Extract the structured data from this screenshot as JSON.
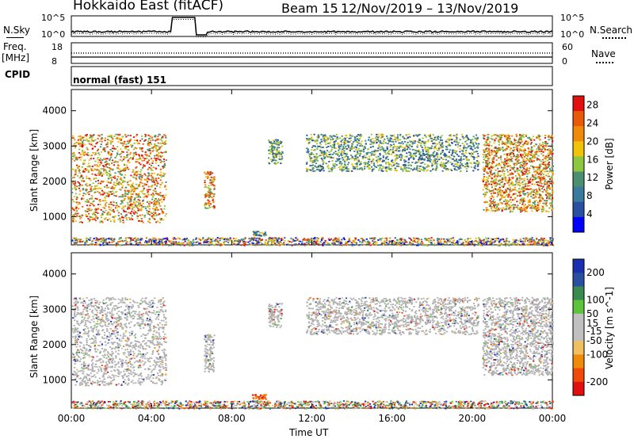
{
  "header": {
    "station_title": "Hokkaido East (fitACF)",
    "beam_label": "Beam 15",
    "date_range": "12/Nov/2019 – 13/Nov/2019"
  },
  "top_strip": {
    "left_label": "N.Sky",
    "right_label": "N.Search",
    "left_ticks": [
      "10^5",
      "10^0"
    ],
    "right_ticks": [
      "10^5",
      "10^0"
    ]
  },
  "freq_strip": {
    "left_label_line1": "Freq.",
    "left_label_line2": "[MHz]",
    "right_label": "Nave",
    "left_ticks": [
      "18",
      "8"
    ],
    "right_ticks": [
      "60",
      "0"
    ]
  },
  "cpid_strip": {
    "label": "CPID",
    "mode_text": "normal (fast) 151"
  },
  "colors": {
    "power_scale": [
      "#0000ff",
      "#2a4fa0",
      "#3a7a9a",
      "#4a8f70",
      "#8dc63f",
      "#f0c20a",
      "#f08a0a",
      "#e85a0a",
      "#e01010"
    ],
    "velocity_scale": [
      "#e01010",
      "#f04a0a",
      "#f08a0a",
      "#f0c060",
      "#c0c0c0",
      "#c0c0c0",
      "#5cc43c",
      "#3a8a50",
      "#2a4fa0",
      "#1a2fb0"
    ],
    "ground_scatter": "#b0b0b0"
  },
  "chart_data": [
    {
      "type": "heatmap",
      "title": "",
      "ylabel": "Slant Range [km]",
      "xlabel": "",
      "ylim": [
        200,
        4600
      ],
      "yticks": [
        "1000",
        "2000",
        "3000",
        "4000"
      ],
      "colorbar": {
        "label": "Power [dB]",
        "ticks": [
          "4",
          "8",
          "12",
          "16",
          "20",
          "24",
          "28"
        ],
        "range": [
          0,
          30
        ]
      },
      "echo_regions": [
        {
          "t0": 0.0,
          "t1": 4.7,
          "r0": 850,
          "r1": 3350,
          "level": "high"
        },
        {
          "t0": 6.6,
          "t1": 7.1,
          "r0": 1250,
          "r1": 2300,
          "level": "high"
        },
        {
          "t0": 9.8,
          "t1": 10.5,
          "r0": 2500,
          "r1": 3200,
          "level": "medium"
        },
        {
          "t0": 11.7,
          "t1": 20.3,
          "r0": 2300,
          "r1": 3350,
          "level": "medium"
        },
        {
          "t0": 20.5,
          "t1": 24.0,
          "r0": 1150,
          "r1": 3350,
          "level": "high"
        },
        {
          "t0": 9.0,
          "t1": 9.7,
          "r0": 470,
          "r1": 600,
          "level": "medium"
        },
        {
          "t0": 0.0,
          "t1": 24.0,
          "r0": 200,
          "r1": 420,
          "level": "low"
        }
      ]
    },
    {
      "type": "heatmap",
      "title": "",
      "ylabel": "Slant Range [km]",
      "xlabel": "Time UT",
      "xticks": [
        "00:00",
        "04:00",
        "08:00",
        "12:00",
        "16:00",
        "20:00",
        "00:00"
      ],
      "xlim": [
        0,
        24
      ],
      "ylim": [
        200,
        4600
      ],
      "yticks": [
        "1000",
        "2000",
        "3000",
        "4000"
      ],
      "colorbar": {
        "label": "Velocity [m s^-1]",
        "ticks": [
          "200",
          "100",
          "50",
          "15",
          "-15",
          "-50",
          "-100",
          "-200"
        ],
        "range": [
          -250,
          250
        ]
      },
      "echo_regions": [
        {
          "t0": 0.0,
          "t1": 4.7,
          "r0": 850,
          "r1": 3350,
          "level": "ground"
        },
        {
          "t0": 6.6,
          "t1": 7.1,
          "r0": 1250,
          "r1": 2300,
          "level": "ground"
        },
        {
          "t0": 9.8,
          "t1": 10.5,
          "r0": 2500,
          "r1": 3200,
          "level": "ground"
        },
        {
          "t0": 11.7,
          "t1": 20.3,
          "r0": 2300,
          "r1": 3350,
          "level": "ground"
        },
        {
          "t0": 20.5,
          "t1": 24.0,
          "r0": 1150,
          "r1": 3350,
          "level": "ground"
        },
        {
          "t0": 9.0,
          "t1": 9.7,
          "r0": 470,
          "r1": 600,
          "level": "negative"
        },
        {
          "t0": 0.0,
          "t1": 24.0,
          "r0": 200,
          "r1": 420,
          "level": "mixed"
        }
      ]
    }
  ]
}
